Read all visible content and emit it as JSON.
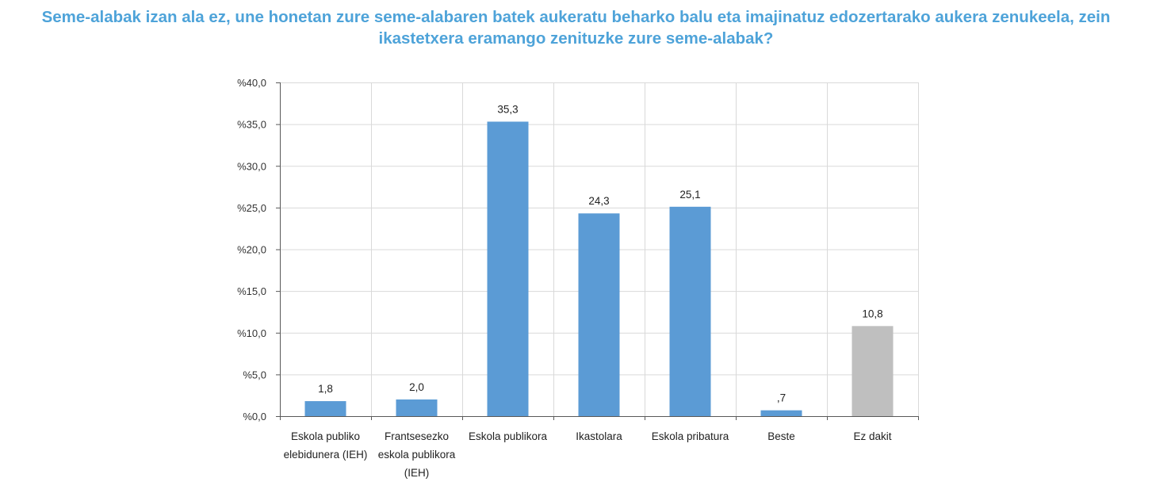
{
  "title_lines": [
    "Seme-alabak izan ala ez, une honetan zure seme-alabaren batek aukeratu beharko balu eta imajinatuz edozertarako aukera zenukeela, zein",
    "ikastetxera eramango zenituzke zure seme-alabak?"
  ],
  "chart_data": {
    "type": "bar",
    "title": "Seme-alabak izan ala ez, une honetan zure seme-alabaren batek aukeratu beharko balu eta imajinatuz edozertarako aukera zenukeela, zein ikastetxera eramango zenituzke zure seme-alabak?",
    "categories": [
      [
        "Eskola publiko",
        "elebidunera (IEH)"
      ],
      [
        "Frantsesezko",
        "eskola publikora",
        "(IEH)"
      ],
      [
        "Eskola publikora"
      ],
      [
        "Ikastolara"
      ],
      [
        "Eskola pribatura"
      ],
      [
        "Beste"
      ],
      [
        "Ez dakit"
      ]
    ],
    "values": [
      1.8,
      2.0,
      35.3,
      24.3,
      25.1,
      0.7,
      10.8
    ],
    "data_labels": [
      "1,8",
      "2,0",
      "35,3",
      "24,3",
      "25,1",
      ",7",
      "10,8"
    ],
    "bar_colors": [
      "#5b9bd5",
      "#5b9bd5",
      "#5b9bd5",
      "#5b9bd5",
      "#5b9bd5",
      "#5b9bd5",
      "#bfbfbf"
    ],
    "ylim": [
      0,
      40
    ],
    "yticks": [
      0,
      5,
      10,
      15,
      20,
      25,
      30,
      35,
      40
    ],
    "ytick_labels": [
      "%0,0",
      "%5,0",
      "%10,0",
      "%15,0",
      "%20,0",
      "%25,0",
      "%30,0",
      "%35,0",
      "%40,0"
    ],
    "xlabel": "",
    "ylabel": "",
    "grid": true
  }
}
